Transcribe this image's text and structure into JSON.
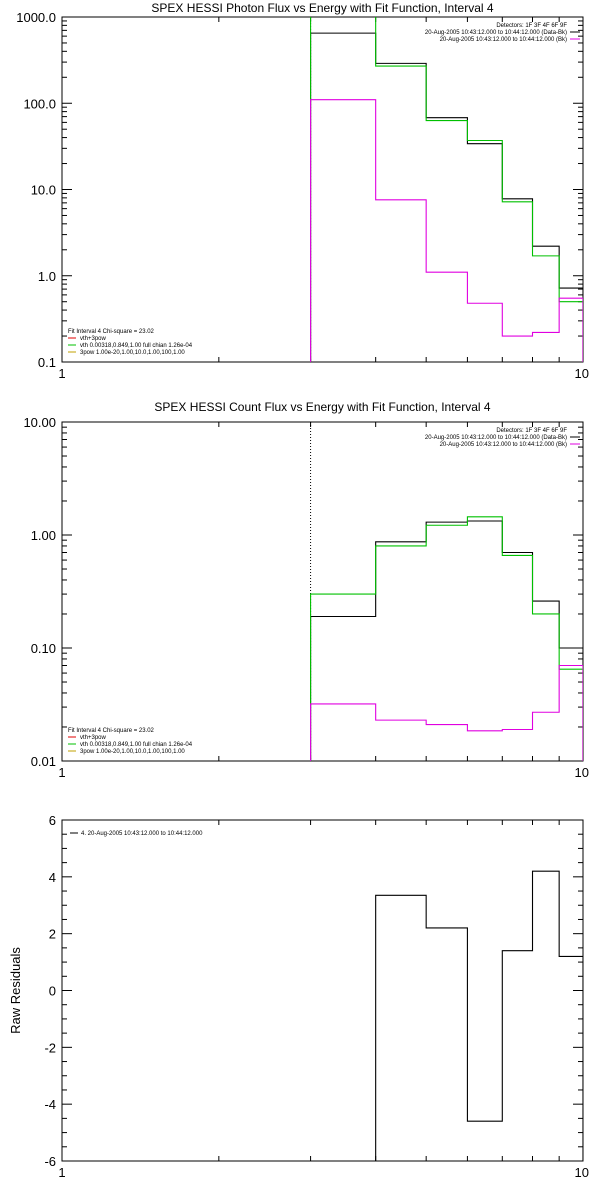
{
  "chart_data": [
    {
      "type": "line",
      "title": "SPEX HESSI Photon Flux vs Energy with Fit Function, Interval 4",
      "xlabel": "",
      "ylabel": "",
      "x_scale": "log",
      "y_scale": "log",
      "xlim": [
        1,
        10
      ],
      "ylim": [
        0.1,
        1000
      ],
      "x_tick_labels": [
        "1",
        "10"
      ],
      "y_tick_labels": [
        "0.1",
        "1.0",
        "10.0",
        "100.0",
        "1000.0"
      ],
      "y_ticks": [
        0.1,
        1,
        10,
        100,
        1000
      ],
      "x_ticks": [
        1,
        10
      ],
      "vline": {
        "x": 3.0,
        "style": "dotted"
      },
      "legend_top_right": [
        {
          "text": "Detectors: 1F 3F 4F 6F 9F",
          "color": ""
        },
        {
          "text": "20-Aug-2005 10:43:12.000 to 10:44:12.000 (Data-Bk)",
          "color": "#000000"
        },
        {
          "text": "20-Aug-2005 10:43:12.000 to 10:44:12.000 (Bk)",
          "color": "#e000e0"
        }
      ],
      "legend_bottom_left": [
        {
          "text": "Fit Interval 4   Chi-square = 23.02",
          "color": ""
        },
        {
          "text": "vth+3pow",
          "color": "#e00000"
        },
        {
          "text": "vth 0.00318,0.849,1.00  full chian 1.26e-04",
          "color": "#00c000"
        },
        {
          "text": "3pow 1.00e-20,1.00,10.0,1.00,100,1.00",
          "color": "#c0a000"
        }
      ],
      "bin_edges": [
        3,
        4,
        5,
        6,
        7,
        8,
        9,
        10
      ],
      "series": [
        {
          "name": "Data-Bk",
          "color": "#000000",
          "values": [
            650,
            290,
            68,
            34,
            7.8,
            2.2,
            0.72
          ]
        },
        {
          "name": "vth+3pow",
          "color": "#00c000",
          "values": [
            1050,
            270,
            63,
            37,
            7.2,
            1.7,
            0.5
          ]
        },
        {
          "name": "Bk",
          "color": "#e000e0",
          "values": [
            110,
            7.6,
            1.1,
            0.48,
            0.2,
            0.22,
            0.55
          ]
        }
      ]
    },
    {
      "type": "line",
      "title": "SPEX HESSI Count Flux vs Energy with Fit Function, Interval 4",
      "xlabel": "",
      "ylabel": "",
      "x_scale": "log",
      "y_scale": "log",
      "xlim": [
        1,
        10
      ],
      "ylim": [
        0.01,
        10
      ],
      "x_tick_labels": [
        "1",
        "10"
      ],
      "y_tick_labels": [
        "0.01",
        "0.10",
        "1.00",
        "10.00"
      ],
      "y_ticks": [
        0.01,
        0.1,
        1,
        10
      ],
      "x_ticks": [
        1,
        10
      ],
      "vline": {
        "x": 3.0,
        "style": "dotted"
      },
      "legend_top_right": [
        {
          "text": "Detectors: 1F 3F 4F 6F 9F",
          "color": ""
        },
        {
          "text": "20-Aug-2005 10:43:12.000 to 10:44:12.000 (Data-Bk)",
          "color": "#000000"
        },
        {
          "text": "20-Aug-2005 10:43:12.000 to 10:44:12.000 (Bk)",
          "color": "#e000e0"
        }
      ],
      "legend_bottom_left": [
        {
          "text": "Fit Interval 4   Chi-square = 23.02",
          "color": ""
        },
        {
          "text": "vth+3pow",
          "color": "#e00000"
        },
        {
          "text": "vth 0.00318,0.849,1.00  full chian 1.26e-04",
          "color": "#00c000"
        },
        {
          "text": "3pow 1.00e-20,1.00,10.0,1.00,100,1.00",
          "color": "#c0a000"
        }
      ],
      "bin_edges": [
        3,
        4,
        5,
        6,
        7,
        8,
        9,
        10
      ],
      "series": [
        {
          "name": "Data-Bk",
          "color": "#000000",
          "values": [
            0.19,
            0.87,
            1.3,
            1.33,
            0.7,
            0.26,
            0.1
          ]
        },
        {
          "name": "vth+3pow",
          "color": "#00c000",
          "values": [
            0.3,
            0.8,
            1.22,
            1.45,
            0.66,
            0.2,
            0.065
          ]
        },
        {
          "name": "Bk",
          "color": "#e000e0",
          "values": [
            0.032,
            0.023,
            0.021,
            0.0185,
            0.019,
            0.027,
            0.07
          ]
        }
      ]
    },
    {
      "type": "line",
      "title": "",
      "xlabel": "",
      "ylabel": "Raw Residuals",
      "x_scale": "log",
      "y_scale": "linear",
      "xlim": [
        1,
        10
      ],
      "ylim": [
        -6,
        6
      ],
      "x_tick_labels": [
        "1",
        "10"
      ],
      "y_tick_labels": [
        "-6",
        "-4",
        "-2",
        "0",
        "2",
        "4",
        "6"
      ],
      "y_ticks": [
        -6,
        -4,
        -2,
        0,
        2,
        4,
        6
      ],
      "x_ticks": [
        1,
        10
      ],
      "legend_top_left": [
        {
          "text": "4. 20-Aug-2005 10:43:12.000 to 10:44:12.000",
          "color": "#000000"
        }
      ],
      "bin_edges": [
        3,
        4,
        5,
        6,
        7,
        8,
        9,
        10
      ],
      "series": [
        {
          "name": "residuals",
          "color": "#000000",
          "values": [
            -6,
            3.35,
            2.2,
            -4.6,
            1.4,
            4.2,
            1.2
          ]
        }
      ]
    }
  ]
}
